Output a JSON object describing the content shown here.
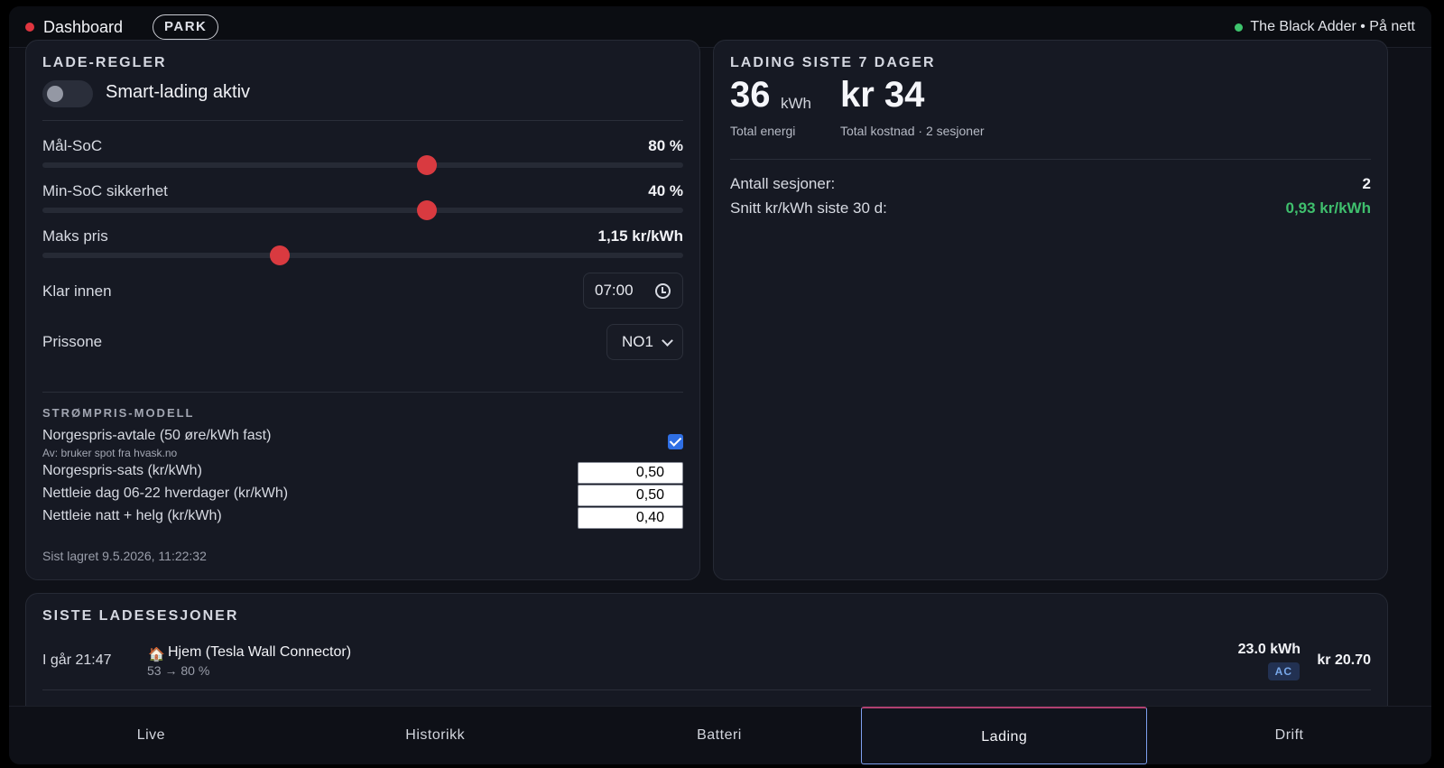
{
  "header": {
    "title": "Dashboard",
    "gear_badge": "PARK",
    "status": "The Black Adder • På nett"
  },
  "rules": {
    "title": "LADE-REGLER",
    "smart_charging_label": "Smart-lading aktiv",
    "smart_charging_enabled": false,
    "target_soc": {
      "label": "Mål-SoC",
      "value": "80 %",
      "level": 0.6
    },
    "min_soc": {
      "label": "Min-SoC sikkerhet",
      "value": "40 %",
      "level": 0.6
    },
    "max_price": {
      "label": "Maks pris",
      "value": "1,15 kr/kWh",
      "level": 0.37
    },
    "ready_by": {
      "label": "Klar innen",
      "value": "07:00"
    },
    "price_zone": {
      "label": "Prissone",
      "value": "NO1"
    },
    "price_model": {
      "caption": "STRØMPRIS-MODELL",
      "norgespris_label": "Norgespris-avtale (50 øre/kWh fast)",
      "norgespris_note": "Av: bruker spot fra hvask.no",
      "norgespris_checked": true,
      "rate_label": "Norgespris-sats (kr/kWh)",
      "rate_value": "0,50",
      "grid_day_label": "Nettleie dag 06-22 hverdager (kr/kWh)",
      "grid_day_value": "0,50",
      "grid_night_label": "Nettleie natt + helg (kr/kWh)",
      "grid_night_value": "0,40"
    },
    "saved_text": "Sist lagret 9.5.2026, 11:22:32"
  },
  "week": {
    "title": "LADING SISTE 7 DAGER",
    "energy_value": "36",
    "energy_unit": "kWh",
    "energy_caption": "Total energi",
    "cost_value": "kr 34",
    "cost_caption": "Total kostnad · 2 sesjoner",
    "sessions_label": "Antall sesjoner:",
    "sessions_value": "2",
    "avg_label": "Snitt kr/kWh siste 30 d:",
    "avg_value": "0,93 kr/kWh",
    "avg_color": "#3fbf6d"
  },
  "sessions": {
    "title": "SISTE LADESESJONER",
    "items": [
      {
        "time": "I går 21:47",
        "icon": "house-icon",
        "place": "Hjem (Tesla Wall Connector)",
        "soc": "53 → 80 %",
        "energy": "23.0 kWh",
        "type": "AC",
        "cost": "kr 20.70"
      }
    ]
  },
  "nav": {
    "tabs": [
      "Live",
      "Historikk",
      "Batteri",
      "Lading",
      "Drift"
    ],
    "active": "Lading"
  },
  "colors": {
    "accent_red": "#d93a40",
    "online_green": "#3ec46d",
    "checkbox_blue": "#2f6fe4"
  }
}
